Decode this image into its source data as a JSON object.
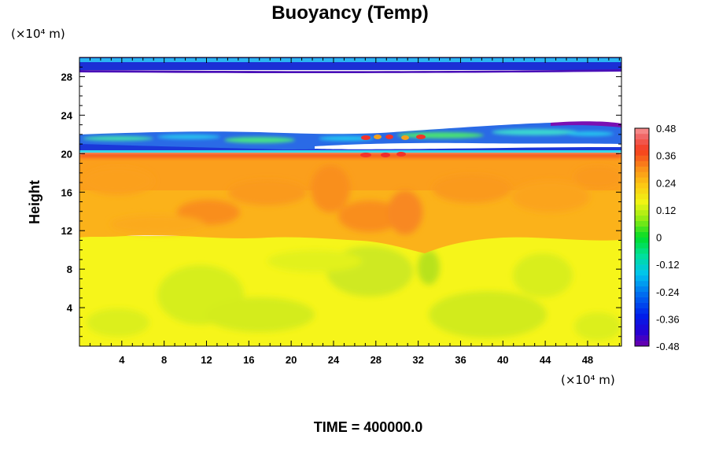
{
  "chart_data": {
    "type": "heatmap",
    "title": "Buoyancy (Temp)",
    "ylabel": "Height",
    "x_unit_label": "(×10⁴ m)",
    "y_unit_label": "(×10⁴ m)",
    "time_label": "TIME = 400000.0",
    "xlim": [
      0,
      51.2
    ],
    "ylim": [
      0,
      30
    ],
    "x_ticks": [
      4,
      8,
      12,
      16,
      20,
      24,
      28,
      32,
      36,
      40,
      44,
      48
    ],
    "y_ticks": [
      4,
      8,
      12,
      16,
      20,
      24,
      28
    ],
    "colorbar": {
      "range": [
        -0.48,
        0.48
      ],
      "tick_values": [
        0.48,
        0.36,
        0.24,
        0.12,
        0,
        -0.12,
        -0.24,
        -0.36,
        -0.48
      ],
      "tick_labels": [
        "0.48",
        "0.36",
        "0.24",
        "0.12",
        "0",
        "-0.12",
        "-0.24",
        "-0.36",
        "-0.48"
      ]
    },
    "field_layers": [
      {
        "name": "lower layer",
        "height_range": [
          0,
          11
        ],
        "approx_value": 0.14
      },
      {
        "name": "middle layer",
        "height_range": [
          11,
          20
        ],
        "approx_value": 0.25
      },
      {
        "name": "interface maxima",
        "height_range": [
          19.5,
          20.5
        ],
        "approx_value": 0.38
      },
      {
        "name": "upper bands",
        "height_range": [
          20.5,
          23
        ],
        "approx_value": -0.2
      },
      {
        "name": "top band",
        "height_range": [
          28.5,
          30
        ],
        "approx_value": -0.4
      }
    ]
  }
}
